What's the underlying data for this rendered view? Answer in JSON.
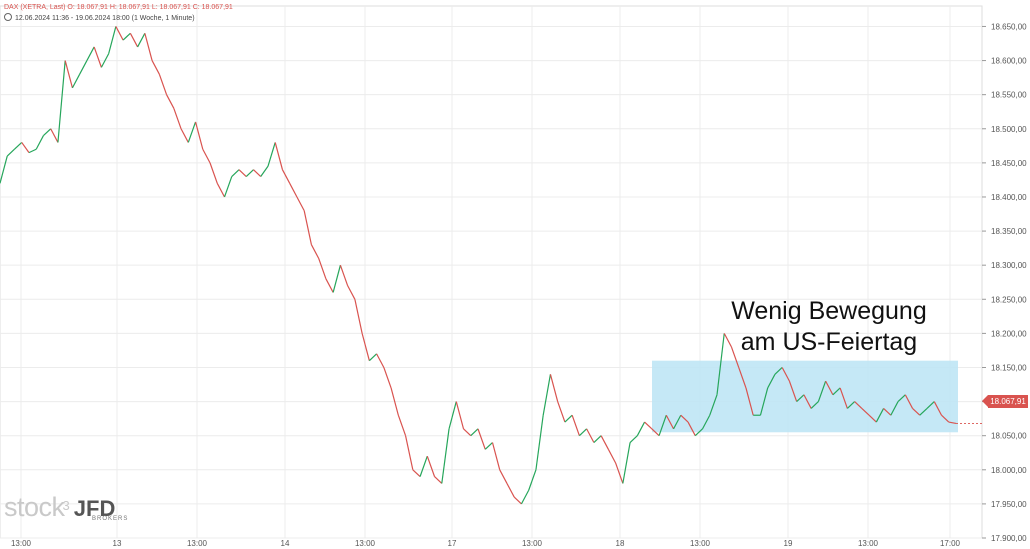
{
  "header": {
    "line1": "DAX (XETRA, Last)  O: 18.067,91  H: 18.067,91  L: 18.067,91  C: 18.067,91",
    "line2": "12.06.2024 11:36 - 19.06.2024 18:00   (1 Woche, 1 Minute)"
  },
  "annotation": {
    "line1": "Wenig Bewegung",
    "line2": "am US-Feiertag"
  },
  "logo": {
    "stock": "stock",
    "three": "3",
    "jfd": "JFD",
    "brokers": "BROKERS"
  },
  "colors": {
    "up": "#26a65b",
    "down": "#d9534f",
    "highlight": "#bfe6f5",
    "grid": "#ececec"
  },
  "chart_data": {
    "type": "line",
    "title": "DAX (XETRA, Last)",
    "last_value_label": "18.067,91",
    "y_range": [
      17900,
      18680
    ],
    "y_ticks": [
      17900,
      17950,
      18000,
      18050,
      18100,
      18150,
      18200,
      18250,
      18300,
      18350,
      18400,
      18450,
      18500,
      18550,
      18600,
      18650
    ],
    "y_tick_labels": [
      "17.900,00",
      "17.950,00",
      "18.000,00",
      "18.050,00",
      "18.100,00",
      "18.150,00",
      "18.200,00",
      "18.250,00",
      "18.300,00",
      "18.350,00",
      "18.400,00",
      "18.450,00",
      "18.500,00",
      "18.550,00",
      "18.600,00",
      "18.650,00"
    ],
    "x_tick_labels": [
      "13:00",
      "13",
      "13:00",
      "14",
      "13:00",
      "17",
      "13:00",
      "18",
      "13:00",
      "19",
      "13:00",
      "17:00"
    ],
    "x_range": [
      "12.06 11:36",
      "19.06 18:00"
    ],
    "highlight_range": {
      "x_from": "18.06 15:30",
      "x_to": "19.06 17:40",
      "y_from": 18055,
      "y_to": 18160
    },
    "series": [
      {
        "values": [
          18420,
          18460,
          18470,
          18480,
          18465,
          18470,
          18490,
          18500,
          18480,
          18600,
          18560,
          18580,
          18600,
          18620,
          18590,
          18610,
          18650,
          18630,
          18640,
          18620,
          18640,
          18600,
          18580,
          18550,
          18530,
          18500,
          18480,
          18510,
          18470,
          18450,
          18420,
          18400,
          18430,
          18440,
          18430,
          18440,
          18430,
          18445,
          18480,
          18440,
          18420,
          18400,
          18380,
          18330,
          18310,
          18280,
          18260,
          18300,
          18270,
          18250,
          18200,
          18160,
          18170,
          18150,
          18120,
          18080,
          18050,
          18000,
          17990,
          18020,
          17990,
          17980,
          18060,
          18100,
          18060,
          18050,
          18060,
          18030,
          18040,
          18000,
          17980,
          17960,
          17950,
          17970,
          18000,
          18080,
          18140,
          18100,
          18070,
          18080,
          18050,
          18060,
          18040,
          18050,
          18030,
          18010,
          17980,
          18040,
          18050,
          18070,
          18060,
          18050,
          18080,
          18060,
          18080,
          18070,
          18050,
          18060,
          18080,
          18110,
          18200,
          18180,
          18150,
          18120,
          18080,
          18080,
          18120,
          18140,
          18150,
          18130,
          18100,
          18110,
          18090,
          18100,
          18130,
          18110,
          18120,
          18090,
          18100,
          18090,
          18080,
          18070,
          18090,
          18080,
          18100,
          18110,
          18090,
          18080,
          18090,
          18100,
          18080,
          18070,
          18068
        ]
      }
    ]
  }
}
